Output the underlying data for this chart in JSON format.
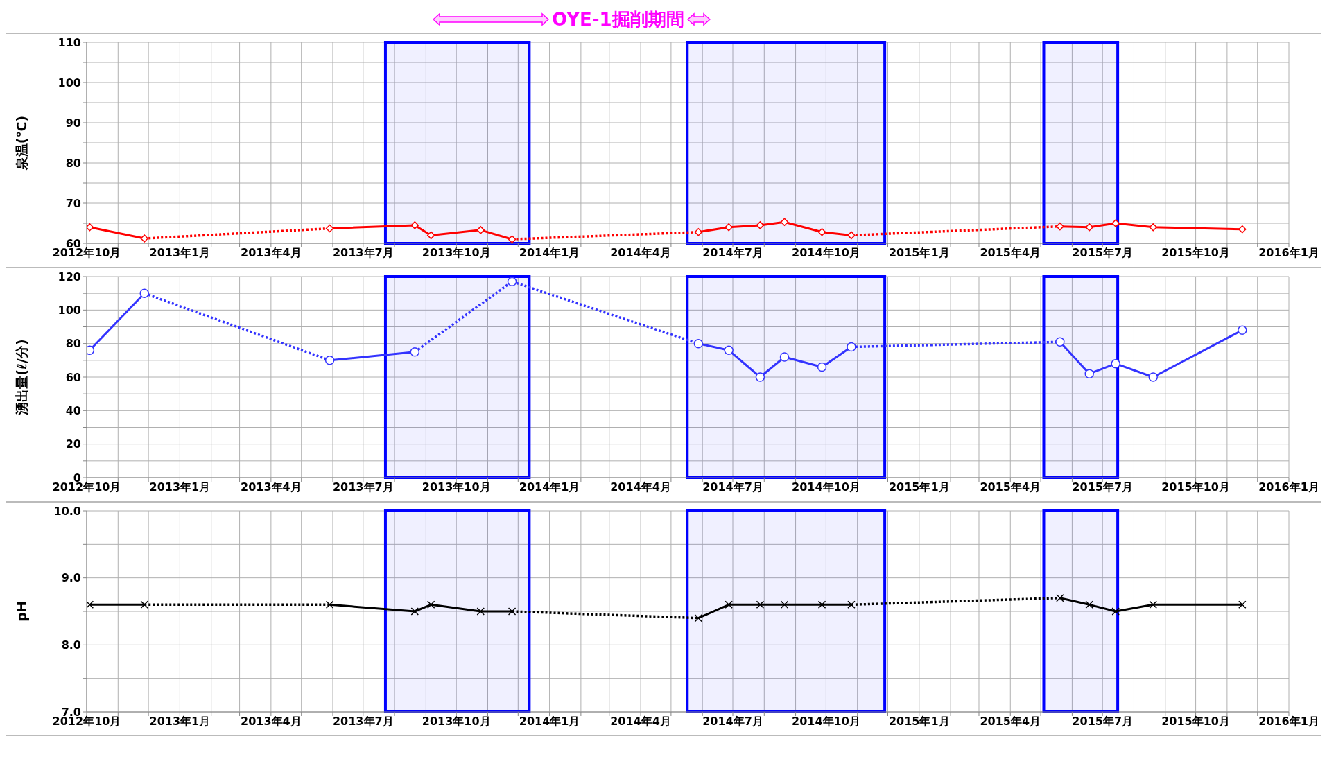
{
  "chart_data": [
    {
      "type": "line",
      "ylabel": "泉温(℃)",
      "annotations": [
        "OYE-1掘削期間"
      ],
      "grid": true,
      "xlim": [
        "2012-10",
        "2016-01"
      ],
      "ylim": [
        60,
        110
      ],
      "yticks": [
        60,
        {
          "value": 65,
          "label": null
        },
        70,
        {
          "value": 75,
          "label": null
        },
        80,
        {
          "value": 85,
          "label": null
        },
        90,
        {
          "value": 95,
          "label": null
        },
        100,
        {
          "value": 105,
          "label": null
        },
        110
      ],
      "xticks": [
        {
          "value": "2012-10",
          "label": "2012年10月"
        },
        {
          "value": "2012-11",
          "label": null
        },
        {
          "value": "2012-12",
          "label": null
        },
        {
          "value": "2013-01",
          "label": "2013年1月"
        },
        {
          "value": "2013-02",
          "label": null
        },
        {
          "value": "2013-03",
          "label": null
        },
        {
          "value": "2013-04",
          "label": "2013年4月"
        },
        {
          "value": "2013-05",
          "label": null
        },
        {
          "value": "2013-06",
          "label": null
        },
        {
          "value": "2013-07",
          "label": "2013年7月"
        },
        {
          "value": "2013-08",
          "label": null
        },
        {
          "value": "2013-09",
          "label": null
        },
        {
          "value": "2013-10",
          "label": "2013年10月"
        },
        {
          "value": "2013-11",
          "label": null
        },
        {
          "value": "2013-12",
          "label": null
        },
        {
          "value": "2014-01",
          "label": "2014年1月"
        },
        {
          "value": "2014-02",
          "label": null
        },
        {
          "value": "2014-03",
          "label": null
        },
        {
          "value": "2014-04",
          "label": "2014年4月"
        },
        {
          "value": "2014-05",
          "label": null
        },
        {
          "value": "2014-06",
          "label": null
        },
        {
          "value": "2014-07",
          "label": "2014年7月"
        },
        {
          "value": "2014-08",
          "label": null
        },
        {
          "value": "2014-09",
          "label": null
        },
        {
          "value": "2014-10",
          "label": "2014年10月"
        },
        {
          "value": "2014-11",
          "label": null
        },
        {
          "value": "2014-12",
          "label": null
        },
        {
          "value": "2015-01",
          "label": "2015年1月"
        },
        {
          "value": "2015-02",
          "label": null
        },
        {
          "value": "2015-03",
          "label": null
        },
        {
          "value": "2015-04",
          "label": "2015年4月"
        },
        {
          "value": "2015-05",
          "label": null
        },
        {
          "value": "2015-06",
          "label": null
        },
        {
          "value": "2015-07",
          "label": "2015年7月"
        },
        {
          "value": "2015-08",
          "label": null
        },
        {
          "value": "2015-09",
          "label": null
        },
        {
          "value": "2015-10",
          "label": "2015年10月"
        },
        {
          "value": "2015-11",
          "label": null
        },
        {
          "value": "2015-12",
          "label": null
        },
        {
          "value": "2016-01",
          "label": "2016年1月"
        }
      ],
      "bands": [
        {
          "axis": "x",
          "from": "2013-07-23",
          "to": "2013-12-12",
          "color": "#0000ff"
        },
        {
          "axis": "x",
          "from": "2014-05-17",
          "to": "2014-11-28",
          "color": "#0000ff"
        },
        {
          "axis": "x",
          "from": "2015-05-04",
          "to": "2015-07-16",
          "color": "#0000ff"
        }
      ],
      "series": [
        {
          "color": "#ff0000",
          "marker": "diamond",
          "line_style": "solid",
          "x": [
            "2012-10-04",
            "2012-11-27"
          ],
          "values": [
            64,
            61.2
          ]
        },
        {
          "color": "#ff0000",
          "marker": "diamond",
          "line_style": "solid",
          "x": [
            "2013-05-29",
            "2013-08-21",
            "2013-09-06",
            "2013-10-25",
            "2013-11-25"
          ],
          "values": [
            63.7,
            64.5,
            62,
            63.3,
            61
          ]
        },
        {
          "color": "#ff0000",
          "marker": "diamond",
          "line_style": "solid",
          "x": [
            "2014-05-28",
            "2014-06-27",
            "2014-07-28",
            "2014-08-21",
            "2014-09-27",
            "2014-10-26"
          ],
          "values": [
            62.8,
            64,
            64.5,
            65.3,
            62.8,
            62
          ]
        },
        {
          "color": "#ff0000",
          "marker": "diamond",
          "line_style": "solid",
          "x": [
            "2015-05-20",
            "2015-06-18",
            "2015-07-14",
            "2015-08-20",
            "2015-11-16"
          ],
          "values": [
            64.2,
            64,
            65,
            64,
            63.5
          ]
        },
        {
          "color": "#ff0000",
          "marker": "none",
          "line_style": "dotted",
          "x": [
            "2012-11-27",
            "2013-05-29"
          ],
          "values": [
            61.2,
            63.7
          ]
        },
        {
          "color": "#ff0000",
          "marker": "none",
          "line_style": "dotted",
          "x": [
            "2013-11-25",
            "2014-05-28"
          ],
          "values": [
            61,
            62.8
          ]
        },
        {
          "color": "#ff0000",
          "marker": "none",
          "line_style": "dotted",
          "x": [
            "2014-10-26",
            "2015-05-20"
          ],
          "values": [
            62,
            64.2
          ]
        }
      ]
    },
    {
      "type": "line",
      "ylabel": "湧出量(ℓ/分)",
      "grid": true,
      "xlim": [
        "2012-10",
        "2016-01"
      ],
      "ylim": [
        0,
        120
      ],
      "yticks": [
        0,
        {
          "value": 10,
          "label": null
        },
        20,
        {
          "value": 30,
          "label": null
        },
        40,
        {
          "value": 50,
          "label": null
        },
        60,
        {
          "value": 70,
          "label": null
        },
        80,
        {
          "value": 90,
          "label": null
        },
        100,
        {
          "value": 110,
          "label": null
        },
        120
      ],
      "xticks": [
        {
          "value": "2012-10",
          "label": "2012年10月"
        },
        {
          "value": "2012-11",
          "label": null
        },
        {
          "value": "2012-12",
          "label": null
        },
        {
          "value": "2013-01",
          "label": "2013年1月"
        },
        {
          "value": "2013-02",
          "label": null
        },
        {
          "value": "2013-03",
          "label": null
        },
        {
          "value": "2013-04",
          "label": "2013年4月"
        },
        {
          "value": "2013-05",
          "label": null
        },
        {
          "value": "2013-06",
          "label": null
        },
        {
          "value": "2013-07",
          "label": "2013年7月"
        },
        {
          "value": "2013-08",
          "label": null
        },
        {
          "value": "2013-09",
          "label": null
        },
        {
          "value": "2013-10",
          "label": "2013年10月"
        },
        {
          "value": "2013-11",
          "label": null
        },
        {
          "value": "2013-12",
          "label": null
        },
        {
          "value": "2014-01",
          "label": "2014年1月"
        },
        {
          "value": "2014-02",
          "label": null
        },
        {
          "value": "2014-03",
          "label": null
        },
        {
          "value": "2014-04",
          "label": "2014年4月"
        },
        {
          "value": "2014-05",
          "label": null
        },
        {
          "value": "2014-06",
          "label": null
        },
        {
          "value": "2014-07",
          "label": "2014年7月"
        },
        {
          "value": "2014-08",
          "label": null
        },
        {
          "value": "2014-09",
          "label": null
        },
        {
          "value": "2014-10",
          "label": "2014年10月"
        },
        {
          "value": "2014-11",
          "label": null
        },
        {
          "value": "2014-12",
          "label": null
        },
        {
          "value": "2015-01",
          "label": "2015年1月"
        },
        {
          "value": "2015-02",
          "label": null
        },
        {
          "value": "2015-03",
          "label": null
        },
        {
          "value": "2015-04",
          "label": "2015年4月"
        },
        {
          "value": "2015-05",
          "label": null
        },
        {
          "value": "2015-06",
          "label": null
        },
        {
          "value": "2015-07",
          "label": "2015年7月"
        },
        {
          "value": "2015-08",
          "label": null
        },
        {
          "value": "2015-09",
          "label": null
        },
        {
          "value": "2015-10",
          "label": "2015年10月"
        },
        {
          "value": "2015-11",
          "label": null
        },
        {
          "value": "2015-12",
          "label": null
        },
        {
          "value": "2016-01",
          "label": "2016年1月"
        }
      ],
      "bands": [
        {
          "axis": "x",
          "from": "2013-07-23",
          "to": "2013-12-12",
          "color": "#0000ff"
        },
        {
          "axis": "x",
          "from": "2014-05-17",
          "to": "2014-11-28",
          "color": "#0000ff"
        },
        {
          "axis": "x",
          "from": "2015-05-04",
          "to": "2015-07-16",
          "color": "#0000ff"
        }
      ],
      "series": [
        {
          "color": "#3333ff",
          "marker": "circle",
          "line_style": "solid",
          "x": [
            "2012-10-04",
            "2012-11-27"
          ],
          "values": [
            76,
            110
          ]
        },
        {
          "color": "#3333ff",
          "marker": "circle",
          "line_style": "solid",
          "x": [
            "2013-05-29",
            "2013-08-21"
          ],
          "values": [
            70,
            75
          ]
        },
        {
          "color": "#3333ff",
          "marker": "circle",
          "line_style": "solid",
          "x": [
            "2013-11-25"
          ],
          "values": [
            117
          ]
        },
        {
          "color": "#3333ff",
          "marker": "circle",
          "line_style": "solid",
          "x": [
            "2014-05-28",
            "2014-06-27",
            "2014-07-28",
            "2014-08-21",
            "2014-09-27",
            "2014-10-26"
          ],
          "values": [
            80,
            76,
            60,
            72,
            66,
            78
          ]
        },
        {
          "color": "#3333ff",
          "marker": "circle",
          "line_style": "solid",
          "x": [
            "2015-05-20",
            "2015-06-18",
            "2015-07-14",
            "2015-08-20",
            "2015-11-16"
          ],
          "values": [
            81,
            62,
            68,
            60,
            88
          ]
        },
        {
          "color": "#3333ff",
          "marker": "none",
          "line_style": "dotted",
          "x": [
            "2012-11-27",
            "2013-05-29"
          ],
          "values": [
            110,
            70
          ]
        },
        {
          "color": "#3333ff",
          "marker": "none",
          "line_style": "dotted",
          "x": [
            "2013-08-21",
            "2013-11-25",
            "2014-05-28"
          ],
          "values": [
            75,
            117,
            80
          ]
        },
        {
          "color": "#3333ff",
          "marker": "none",
          "line_style": "dotted",
          "x": [
            "2014-10-26",
            "2015-05-20"
          ],
          "values": [
            78,
            81
          ]
        }
      ]
    },
    {
      "type": "line",
      "ylabel": "pH",
      "grid": true,
      "xlim": [
        "2012-10",
        "2016-01"
      ],
      "ylim": [
        7,
        10
      ],
      "yticks": [
        {
          "value": 7,
          "label": "7.0"
        },
        {
          "value": 7.5,
          "label": null
        },
        {
          "value": 8,
          "label": "8.0"
        },
        {
          "value": 8.5,
          "label": null
        },
        {
          "value": 9,
          "label": "9.0"
        },
        {
          "value": 9.5,
          "label": null
        },
        {
          "value": 10,
          "label": "10.0"
        }
      ],
      "xticks": [
        {
          "value": "2012-10",
          "label": "2012年10月"
        },
        {
          "value": "2012-11",
          "label": null
        },
        {
          "value": "2012-12",
          "label": null
        },
        {
          "value": "2013-01",
          "label": "2013年1月"
        },
        {
          "value": "2013-02",
          "label": null
        },
        {
          "value": "2013-03",
          "label": null
        },
        {
          "value": "2013-04",
          "label": "2013年4月"
        },
        {
          "value": "2013-05",
          "label": null
        },
        {
          "value": "2013-06",
          "label": null
        },
        {
          "value": "2013-07",
          "label": "2013年7月"
        },
        {
          "value": "2013-08",
          "label": null
        },
        {
          "value": "2013-09",
          "label": null
        },
        {
          "value": "2013-10",
          "label": "2013年10月"
        },
        {
          "value": "2013-11",
          "label": null
        },
        {
          "value": "2013-12",
          "label": null
        },
        {
          "value": "2014-01",
          "label": "2014年1月"
        },
        {
          "value": "2014-02",
          "label": null
        },
        {
          "value": "2014-03",
          "label": null
        },
        {
          "value": "2014-04",
          "label": "2014年4月"
        },
        {
          "value": "2014-05",
          "label": null
        },
        {
          "value": "2014-06",
          "label": null
        },
        {
          "value": "2014-07",
          "label": "2014年7月"
        },
        {
          "value": "2014-08",
          "label": null
        },
        {
          "value": "2014-09",
          "label": null
        },
        {
          "value": "2014-10",
          "label": "2014年10月"
        },
        {
          "value": "2014-11",
          "label": null
        },
        {
          "value": "2014-12",
          "label": null
        },
        {
          "value": "2015-01",
          "label": "2015年1月"
        },
        {
          "value": "2015-02",
          "label": null
        },
        {
          "value": "2015-03",
          "label": null
        },
        {
          "value": "2015-04",
          "label": "2015年4月"
        },
        {
          "value": "2015-05",
          "label": null
        },
        {
          "value": "2015-06",
          "label": null
        },
        {
          "value": "2015-07",
          "label": "2015年7月"
        },
        {
          "value": "2015-08",
          "label": null
        },
        {
          "value": "2015-09",
          "label": null
        },
        {
          "value": "2015-10",
          "label": "2015年10月"
        },
        {
          "value": "2015-11",
          "label": null
        },
        {
          "value": "2015-12",
          "label": null
        },
        {
          "value": "2016-01",
          "label": "2016年1月"
        }
      ],
      "bands": [
        {
          "axis": "x",
          "from": "2013-07-23",
          "to": "2013-12-12",
          "color": "#0000ff"
        },
        {
          "axis": "x",
          "from": "2014-05-17",
          "to": "2014-11-28",
          "color": "#0000ff"
        },
        {
          "axis": "x",
          "from": "2015-05-04",
          "to": "2015-07-16",
          "color": "#0000ff"
        }
      ],
      "series": [
        {
          "color": "#000000",
          "marker": "cross",
          "line_style": "solid",
          "x": [
            "2012-10-04",
            "2012-11-27"
          ],
          "values": [
            8.6,
            8.6
          ]
        },
        {
          "color": "#000000",
          "marker": "cross",
          "line_style": "solid",
          "x": [
            "2013-05-29",
            "2013-08-21",
            "2013-09-06",
            "2013-10-25",
            "2013-11-25"
          ],
          "values": [
            8.6,
            8.5,
            8.6,
            8.5,
            8.5
          ]
        },
        {
          "color": "#000000",
          "marker": "cross",
          "line_style": "solid",
          "x": [
            "2014-05-28",
            "2014-06-27",
            "2014-07-28",
            "2014-08-21",
            "2014-09-27",
            "2014-10-26"
          ],
          "values": [
            8.4,
            8.6,
            8.6,
            8.6,
            8.6,
            8.6
          ]
        },
        {
          "color": "#000000",
          "marker": "cross",
          "line_style": "solid",
          "x": [
            "2015-05-20",
            "2015-06-18",
            "2015-07-14",
            "2015-08-20",
            "2015-11-16"
          ],
          "values": [
            8.7,
            8.6,
            8.5,
            8.6,
            8.6
          ]
        },
        {
          "color": "#000000",
          "marker": "none",
          "line_style": "dotted",
          "x": [
            "2012-11-27",
            "2013-05-29"
          ],
          "values": [
            8.6,
            8.6
          ]
        },
        {
          "color": "#000000",
          "marker": "none",
          "line_style": "dotted",
          "x": [
            "2013-11-25",
            "2014-05-28"
          ],
          "values": [
            8.5,
            8.4
          ]
        },
        {
          "color": "#000000",
          "marker": "none",
          "line_style": "dotted",
          "x": [
            "2014-10-26",
            "2015-05-20"
          ],
          "values": [
            8.6,
            8.7
          ]
        }
      ]
    }
  ]
}
